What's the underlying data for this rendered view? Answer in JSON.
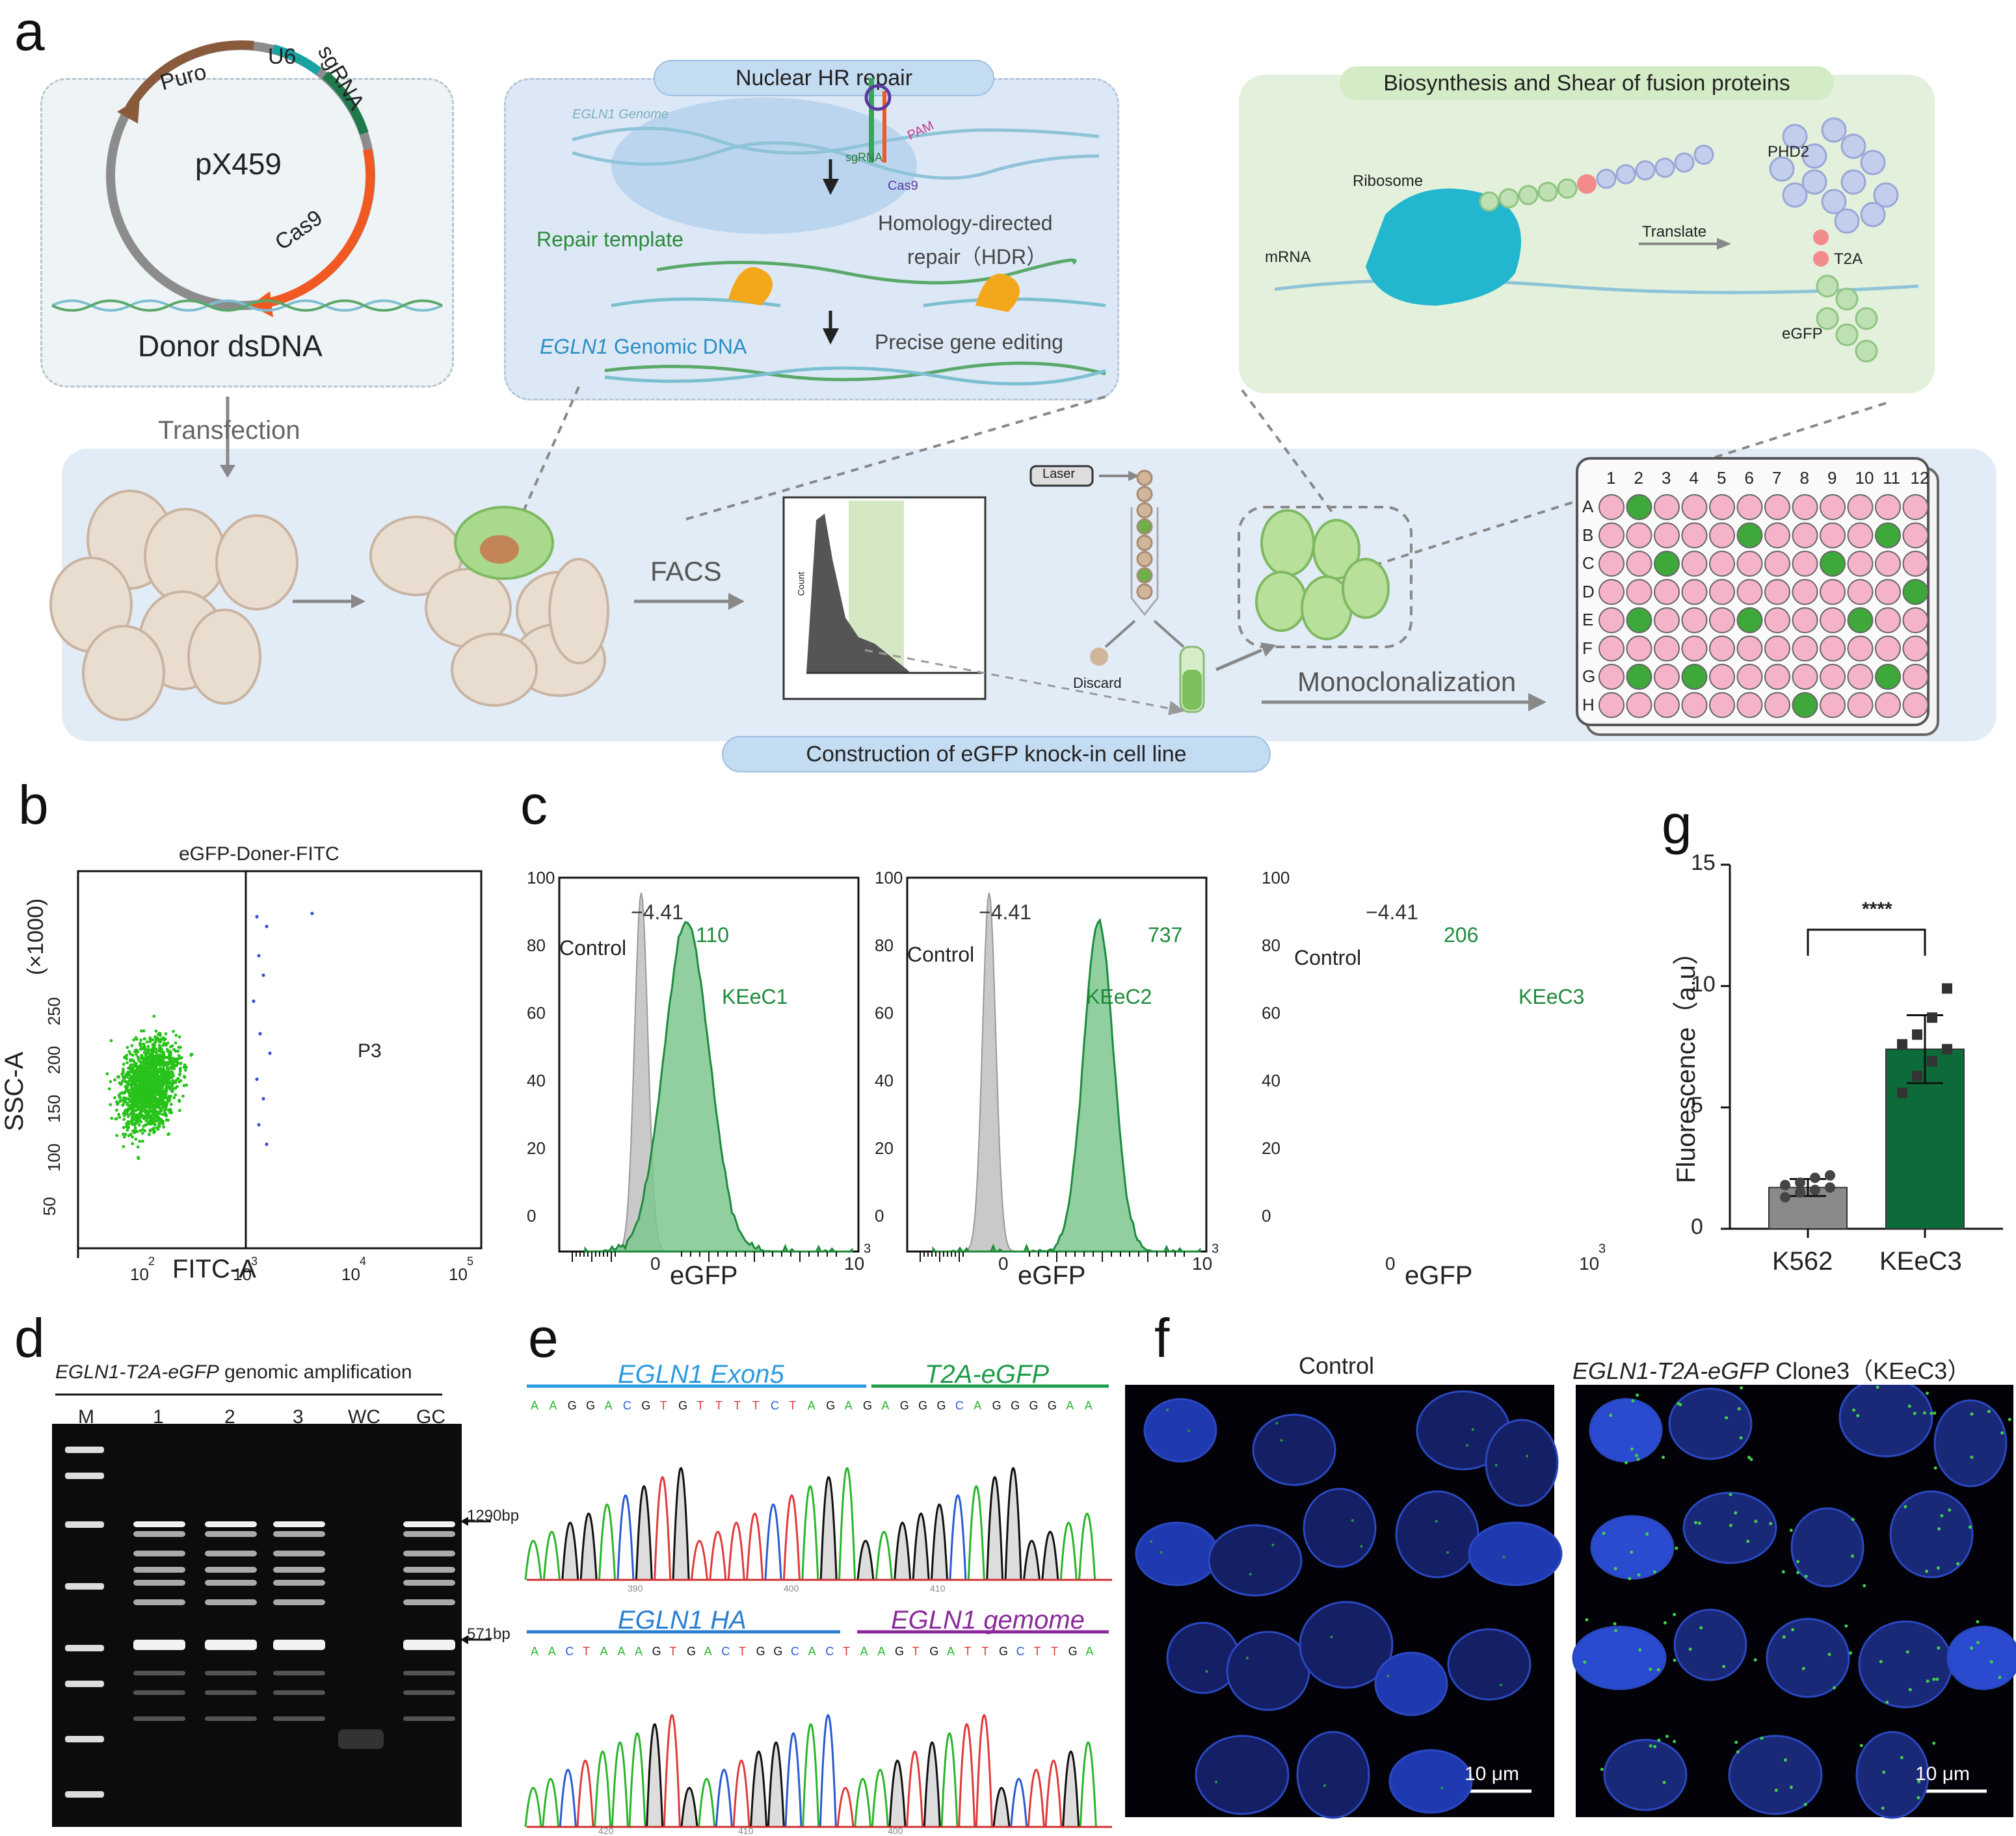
{
  "panels": {
    "a": "a",
    "b": "b",
    "c": "c",
    "d": "d",
    "e": "e",
    "f": "f",
    "g": "g"
  },
  "panel_a": {
    "plasmid": {
      "name": "pX459",
      "puro": "Puro",
      "u6": "U6",
      "sgrna": "sgRNA",
      "cas9": "Cas9"
    },
    "donor": "Donor dsDNA",
    "nuclear_title": "Nuclear HR repair",
    "egln1_genome": "EGLN1 Genome",
    "sgrna": "sgRNA",
    "pam": "PAM",
    "cas9": "Cas9",
    "repair_template": "Repair template",
    "hdr1": "Homology-directed",
    "hdr2": "repair（HDR）",
    "genomic_dna_it": "EGLN1",
    "genomic_dna": " Genomic DNA",
    "precise": "Precise gene editing",
    "bio_title": "Biosynthesis and Shear of fusion proteins",
    "ribosome": "Ribosome",
    "mrna": "mRNA",
    "translate": "Translate",
    "phd2": "PHD2",
    "t2a": "T2A",
    "egfp": "eGFP",
    "transfection": "Transfection",
    "facs": "FACS",
    "laser": "Laser",
    "discard": "Discard",
    "monoclonalization": "Monoclonalization",
    "construction": "Construction of eGFP knock-in cell line",
    "hist_y": "Count",
    "plate_cols": [
      "1",
      "2",
      "3",
      "4",
      "5",
      "6",
      "7",
      "8",
      "9",
      "10",
      "11",
      "12"
    ],
    "plate_rows": [
      "A",
      "B",
      "C",
      "D",
      "E",
      "F",
      "G",
      "H"
    ]
  },
  "panel_b": {
    "title": "eGFP-Doner-FITC",
    "ylabel": "SSC-A",
    "yunit": "(×1000)",
    "xlabel": "FITC-A",
    "gate": "P3",
    "yticks": [
      "50",
      "100",
      "150",
      "200",
      "250"
    ],
    "xticks": [
      "10",
      "10",
      "10",
      "10"
    ],
    "xexp": [
      "2",
      "3",
      "4",
      "5"
    ]
  },
  "panel_c": {
    "histograms": [
      {
        "sample": "KEeC1",
        "peak": "110",
        "control": "Control",
        "control_peak": "−4.41"
      },
      {
        "sample": "KEeC2",
        "peak": "737",
        "control": "Control",
        "control_peak": "−4.41"
      },
      {
        "sample": "KEeC3",
        "peak": "206",
        "control": "Control",
        "control_peak": "−4.41"
      }
    ],
    "xlabel": "eGFP",
    "yticks": [
      "0",
      "20",
      "40",
      "60",
      "80",
      "100"
    ],
    "xtick0": "0",
    "xtick_hi": "10",
    "xtick_exp": "3"
  },
  "panel_d": {
    "title_it": "EGLN1-T2A-eGFP",
    "title": " genomic amplification",
    "lanes": [
      "M",
      "1",
      "2",
      "3",
      "WC",
      "GC"
    ],
    "bands": [
      "1290bp",
      "571bp"
    ]
  },
  "panel_e": {
    "top_left": "EGLN1 Exon5",
    "top_right": "T2A-eGFP",
    "bottom_left": "EGLN1 HA",
    "bottom_right": "EGLN1 gemome",
    "seq_top": "AAGGACGTGTTTTCTAGAGAGGGCAGGGGAA",
    "seq_bottom": "AACTAAAGTGACTGGCACTAAGTGATTGCTTGA",
    "ticks_top": [
      "390",
      "400",
      "410"
    ],
    "ticks_bottom": [
      "420",
      "410",
      "400"
    ]
  },
  "panel_f": {
    "left_title": "Control",
    "right_title_it": "EGLN1-T2A-eGFP",
    "right_title": " Clone3（KEeC3）",
    "scale": "10 μm"
  },
  "chart_data": {
    "type": "bar",
    "title": "",
    "categories": [
      "K562",
      "KEeC3"
    ],
    "values": [
      1.7,
      7.4
    ],
    "errors": [
      0.35,
      1.4
    ],
    "points": [
      [
        1.3,
        1.5,
        1.6,
        1.7,
        1.8,
        1.9,
        2.1,
        2.2
      ],
      [
        5.6,
        6.3,
        6.9,
        7.4,
        7.6,
        8.0,
        8.7,
        9.9
      ]
    ],
    "ylabel": "Fluorescence（a.u）",
    "xlabel": "",
    "ylim": [
      0,
      15
    ],
    "yticks": [
      "0",
      "5",
      "10",
      "15"
    ],
    "significance": "****",
    "colors": [
      "#8a8a8a",
      "#0d6b3a"
    ]
  },
  "colors": {
    "green": "#1e8b3c",
    "dark_green": "#0d6b3a",
    "box_blue": "#dce8f6",
    "box_green": "#e4f2dd"
  }
}
